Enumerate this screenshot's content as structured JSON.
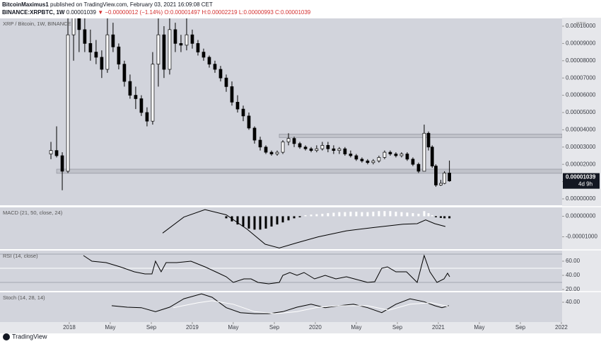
{
  "header": {
    "author": "BitcoinMaximus1",
    "published": "published on TradingView.com, February 03, 2021 16:09:08 CET",
    "symbol": "BINANCE:XRPBTC, 1W",
    "last": "0.00001039",
    "change": "▼ −0.00000012 (−1.14%)",
    "ohlc": "O:0.00001497 H:0.00002219 L:0.00000993 C:0.00001039"
  },
  "footer": {
    "brand": "TradingView"
  },
  "chart_data": [
    {
      "type": "candlestick",
      "title": "XRP / Bitcoin, 1W, BINANCE",
      "currency": "BTC",
      "up_color": "#ffffff",
      "down_color": "#000000",
      "x": [
        2017.851,
        2017.897,
        2017.943,
        2017.989,
        2018.035,
        2018.08,
        2018.126,
        2018.172,
        2018.218,
        2018.264,
        2018.31,
        2018.356,
        2018.402,
        2018.448,
        2018.494,
        2018.54,
        2018.586,
        2018.632,
        2018.678,
        2018.724,
        2018.77,
        2018.816,
        2018.862,
        2018.908,
        2018.954,
        2019.0,
        2019.046,
        2019.092,
        2019.138,
        2019.184,
        2019.23,
        2019.276,
        2019.322,
        2019.368,
        2019.414,
        2019.46,
        2019.506,
        2019.552,
        2019.598,
        2019.644,
        2019.69,
        2019.736,
        2019.782,
        2019.828,
        2019.874,
        2019.92,
        2019.966,
        2020.011,
        2020.057,
        2020.103,
        2020.149,
        2020.195,
        2020.241,
        2020.287,
        2020.333,
        2020.379,
        2020.425,
        2020.471,
        2020.517,
        2020.563,
        2020.609,
        2020.655,
        2020.701,
        2020.747,
        2020.793,
        2020.839,
        2020.885,
        2020.92,
        2020.95,
        2020.98,
        2021.02,
        2021.05,
        2021.09
      ],
      "open": [
        2.6e-05,
        2.8e-05,
        2.5e-05,
        1.6e-05,
        9.5e-05,
        0.000115,
        9.8e-05,
        9e-05,
        8.5e-05,
        8.2e-05,
        7.5e-05,
        9.5e-05,
        8.8e-05,
        7.8e-05,
        6.8e-05,
        6e-05,
        5.8e-05,
        5e-05,
        4.5e-05,
        7.8e-05,
        9.5e-05,
        7.5e-05,
        9.8e-05,
        9e-05,
        8.9e-05,
        9.5e-05,
        9e-05,
        8.5e-05,
        8.2e-05,
        7.8e-05,
        7.5e-05,
        7e-05,
        6.5e-05,
        5.6e-05,
        5.2e-05,
        4.8e-05,
        4.1e-05,
        3.4e-05,
        3e-05,
        2.7e-05,
        2.6e-05,
        2.7e-05,
        3.3e-05,
        3.5e-05,
        3.2e-05,
        3e-05,
        2.9e-05,
        2.8e-05,
        2.9e-05,
        3.1e-05,
        2.9e-05,
        2.8e-05,
        2.9e-05,
        2.6e-05,
        2.5e-05,
        2.3e-05,
        2.2e-05,
        2.1e-05,
        2.2e-05,
        2.4e-05,
        2.7e-05,
        2.6e-05,
        2.5e-05,
        2.6e-05,
        2.3e-05,
        2e-05,
        1.6e-05,
        3.8e-05,
        3e-05,
        1.9e-05,
        8e-06,
        9e-06,
        1.497e-05
      ],
      "high": [
        3.3e-05,
        4.2e-05,
        2.7e-05,
        0.000105,
        0.00014,
        0.00013,
        0.00011,
        9.8e-05,
        9.2e-05,
        8.6e-05,
        0.000105,
        0.000102,
        9e-05,
        8e-05,
        7.2e-05,
        6.5e-05,
        6e-05,
        5.3e-05,
        8.5e-05,
        0.000105,
        0.0001,
        0.000108,
        0.000102,
        9.5e-05,
        0.00011,
        9.8e-05,
        9.2e-05,
        8.7e-05,
        8.3e-05,
        8e-05,
        7.7e-05,
        7.2e-05,
        6.8e-05,
        6e-05,
        5.4e-05,
        5e-05,
        4.2e-05,
        3.6e-05,
        3.1e-05,
        2.8e-05,
        2.8e-05,
        3.4e-05,
        3.8e-05,
        3.6e-05,
        3.3e-05,
        3.1e-05,
        3e-05,
        3.1e-05,
        3.3e-05,
        3.3e-05,
        3.1e-05,
        3e-05,
        3e-05,
        2.8e-05,
        2.6e-05,
        2.4e-05,
        2.3e-05,
        2.3e-05,
        2.5e-05,
        2.8e-05,
        2.8e-05,
        2.7e-05,
        2.7e-05,
        2.7e-05,
        2.4e-05,
        2.1e-05,
        4.3e-05,
        3.9e-05,
        3.1e-05,
        2e-05,
        1.1e-05,
        1.6e-05,
        2.219e-05
      ],
      "low": [
        2.3e-05,
        2.4e-05,
        5e-06,
        1.5e-05,
        8e-05,
        8.5e-05,
        8.5e-05,
        8e-05,
        7.8e-05,
        7e-05,
        7.3e-05,
        8.5e-05,
        7.5e-05,
        6.5e-05,
        5.8e-05,
        5.2e-05,
        4.8e-05,
        4.2e-05,
        4.3e-05,
        6.5e-05,
        7e-05,
        7.2e-05,
        8.5e-05,
        8.5e-05,
        8.6e-05,
        8.7e-05,
        8.3e-05,
        8e-05,
        7.6e-05,
        7.3e-05,
        6.8e-05,
        6.2e-05,
        5.4e-05,
        5e-05,
        4.5e-05,
        4e-05,
        3.2e-05,
        2.8e-05,
        2.6e-05,
        2.5e-05,
        2.5e-05,
        2.6e-05,
        3.1e-05,
        3e-05,
        2.9e-05,
        2.8e-05,
        2.7e-05,
        2.7e-05,
        2.8e-05,
        2.7e-05,
        2.6e-05,
        2.6e-05,
        2.5e-05,
        2.4e-05,
        2.2e-05,
        2.1e-05,
        2e-05,
        2e-05,
        2.1e-05,
        2.3e-05,
        2.5e-05,
        2.4e-05,
        2.4e-05,
        2.2e-05,
        1.9e-05,
        1.5e-05,
        1.6e-05,
        2.8e-05,
        1.8e-05,
        7e-06,
        7.5e-06,
        8.5e-06,
        9.93e-06
      ],
      "close": [
        2.8e-05,
        2.5e-05,
        1.6e-05,
        9.5e-05,
        0.000115,
        9.8e-05,
        9e-05,
        8.5e-05,
        8.2e-05,
        7.5e-05,
        9.5e-05,
        8.8e-05,
        7.8e-05,
        6.8e-05,
        6e-05,
        5.8e-05,
        5e-05,
        4.5e-05,
        7.8e-05,
        9.5e-05,
        7.5e-05,
        9.8e-05,
        9e-05,
        8.9e-05,
        9.5e-05,
        9e-05,
        8.5e-05,
        8.2e-05,
        7.8e-05,
        7.5e-05,
        7e-05,
        6.5e-05,
        5.6e-05,
        5.2e-05,
        4.8e-05,
        4.1e-05,
        3.4e-05,
        3e-05,
        2.7e-05,
        2.6e-05,
        2.7e-05,
        3.3e-05,
        3.5e-05,
        3.2e-05,
        3e-05,
        2.9e-05,
        2.8e-05,
        2.9e-05,
        3.1e-05,
        2.9e-05,
        2.8e-05,
        2.9e-05,
        2.6e-05,
        2.5e-05,
        2.3e-05,
        2.2e-05,
        2.1e-05,
        2.2e-05,
        2.4e-05,
        2.7e-05,
        2.6e-05,
        2.5e-05,
        2.6e-05,
        2.3e-05,
        2e-05,
        1.6e-05,
        3.8e-05,
        3e-05,
        1.9e-05,
        8e-06,
        9e-06,
        1.497e-05,
        1.039e-05
      ],
      "zones": [
        {
          "low": 1.48e-05,
          "high": 1.72e-05,
          "start": 2017.897
        },
        {
          "low": 3.55e-05,
          "high": 3.75e-05,
          "start": 2019.707
        }
      ],
      "last_label": "0.00001039",
      "countdown": "4d 9h",
      "xlim": [
        2017.437,
        2022.006
      ],
      "xticks": [
        {
          "value": 2018,
          "label": "2018"
        },
        {
          "value": 2018.333,
          "label": "May"
        },
        {
          "value": 2018.667,
          "label": "Sep"
        },
        {
          "value": 2019,
          "label": "2019"
        },
        {
          "value": 2019.333,
          "label": "May"
        },
        {
          "value": 2019.667,
          "label": "Sep"
        },
        {
          "value": 2020,
          "label": "2020"
        },
        {
          "value": 2020.333,
          "label": "May"
        },
        {
          "value": 2020.667,
          "label": "Sep"
        },
        {
          "value": 2021,
          "label": "2021"
        },
        {
          "value": 2021.333,
          "label": "May"
        },
        {
          "value": 2021.667,
          "label": "Sep"
        },
        {
          "value": 2022,
          "label": "2022"
        }
      ],
      "ylim": [
        -3.7e-06,
        0.0001045
      ],
      "yticks": [
        {
          "value": 0,
          "label": "0.00000000"
        },
        {
          "value": 1e-05,
          "label": "0.00001000"
        },
        {
          "value": 2e-05,
          "label": "0.00002000"
        },
        {
          "value": 3e-05,
          "label": "0.00003000"
        },
        {
          "value": 4e-05,
          "label": "0.00004000"
        },
        {
          "value": 5e-05,
          "label": "0.00005000"
        },
        {
          "value": 6e-05,
          "label": "0.00006000"
        },
        {
          "value": 7e-05,
          "label": "0.00007000"
        },
        {
          "value": 8e-05,
          "label": "0.00008000"
        },
        {
          "value": 9e-05,
          "label": "0.00009000"
        },
        {
          "value": 0.0001,
          "label": "0.00010000"
        }
      ]
    },
    {
      "type": "macd",
      "title": "MACD (21, 50, close, 24)",
      "ylim": [
        -1.6e-05,
        4.3e-06
      ],
      "yticks": [
        {
          "value": 0,
          "label": "0.00000000"
        },
        {
          "value": -1e-05,
          "label": "-0.00001000"
        }
      ],
      "histogram": {
        "up_color": "#ffffff",
        "down_color": "#000000",
        "values": [
          null,
          null,
          null,
          null,
          null,
          null,
          null,
          null,
          null,
          null,
          null,
          null,
          null,
          null,
          null,
          null,
          null,
          null,
          null,
          null,
          null,
          null,
          null,
          null,
          null,
          null,
          null,
          null,
          null,
          null,
          null,
          -1e-06,
          -2.5e-06,
          -4e-06,
          -5e-06,
          -6e-06,
          -6.5e-06,
          -6.5e-06,
          -6e-06,
          -5e-06,
          -4e-06,
          -3e-06,
          -2e-06,
          -1e-06,
          -5e-07,
          5e-07,
          8e-07,
          1e-06,
          1.2e-06,
          1.5e-06,
          1.7e-06,
          2e-06,
          2e-06,
          2.2e-06,
          2.2e-06,
          2e-06,
          2e-06,
          2.2e-06,
          2.5e-06,
          2.5e-06,
          2.5e-06,
          2.2e-06,
          2e-06,
          1.8e-06,
          1.5e-06,
          1.2e-06,
          2.5e-06,
          1.5e-06,
          5e-07,
          -5e-07,
          -8e-07,
          -1e-06,
          -1e-06
        ]
      },
      "lines": [
        {
          "color": "#000000",
          "x": [
            2018.759,
            2018.931,
            2019.103,
            2019.276,
            2019.448,
            2019.592,
            2019.707,
            2019.851,
            2020.023,
            2020.253,
            2020.483,
            2020.713,
            2020.828,
            2020.897,
            2020.971,
            2021.057
          ],
          "values": [
            -8.2e-06,
            -4e-07,
            3.2e-06,
            7e-07,
            -6.4e-06,
            -1.36e-05,
            -1.54e-05,
            -1.29e-05,
            -1e-05,
            -7.1e-06,
            -5.4e-06,
            -3.9e-06,
            -3.6e-06,
            -1.8e-06,
            -3.6e-06,
            -5e-06
          ]
        }
      ]
    },
    {
      "type": "line",
      "title": "RSI (14, close)",
      "ylim": [
        18,
        75
      ],
      "yticks": [
        {
          "value": 60,
          "label": "60.00"
        },
        {
          "value": 40,
          "label": "40.00"
        },
        {
          "value": 20,
          "label": "20.00"
        }
      ],
      "levels": [
        {
          "value": 70,
          "color": "#a3a6af"
        },
        {
          "value": 50,
          "color": "#ffffff"
        },
        {
          "value": 30,
          "color": "#a3a6af"
        }
      ],
      "lines": [
        {
          "color": "#000000",
          "x": [
            2018.115,
            2018.184,
            2018.299,
            2018.414,
            2018.529,
            2018.615,
            2018.672,
            2018.701,
            2018.747,
            2018.787,
            2018.874,
            2018.989,
            2019.103,
            2019.19,
            2019.276,
            2019.333,
            2019.42,
            2019.477,
            2019.534,
            2019.621,
            2019.707,
            2019.736,
            2019.793,
            2019.851,
            2019.908,
            2019.994,
            2020.08,
            2020.167,
            2020.253,
            2020.339,
            2020.425,
            2020.483,
            2020.54,
            2020.586,
            2020.655,
            2020.741,
            2020.828,
            2020.885,
            2020.931,
            2020.989,
            2021.046,
            2021.075,
            2021.092
          ],
          "values": [
            68,
            60,
            58,
            52,
            45,
            42,
            42,
            60,
            45,
            58,
            58,
            60,
            52,
            45,
            38,
            30,
            35,
            35,
            30,
            28,
            30,
            40,
            44,
            40,
            44,
            35,
            40,
            35,
            38,
            34,
            30,
            31,
            50,
            52,
            45,
            45,
            30,
            68,
            45,
            30,
            35,
            43,
            38
          ]
        }
      ]
    },
    {
      "type": "line",
      "title": "Stoch (14, 28, 14)",
      "ylim": [
        0,
        60
      ],
      "yticks": [
        {
          "value": 40,
          "label": "40.00"
        }
      ],
      "levels": [],
      "lines": [
        {
          "color": "#000000",
          "x": [
            2018.345,
            2018.471,
            2018.586,
            2018.701,
            2018.816,
            2018.931,
            2019.075,
            2019.161,
            2019.276,
            2019.391,
            2019.506,
            2019.621,
            2019.736,
            2019.851,
            2019.966,
            2020.08,
            2020.195,
            2020.31,
            2020.425,
            2020.54,
            2020.655,
            2020.77,
            2020.885,
            2020.971,
            2021.029,
            2021.086
          ],
          "values": [
            33,
            30,
            29,
            21,
            30,
            47,
            57,
            50,
            29,
            19,
            17,
            17,
            21,
            30,
            36,
            29,
            33,
            36,
            29,
            19,
            36,
            47,
            41,
            33,
            29,
            33
          ]
        },
        {
          "color": "#ffffff",
          "x": [
            2018.845,
            2019.046,
            2019.161,
            2019.333,
            2019.506,
            2019.678,
            2019.851,
            2020.023,
            2020.195,
            2020.425,
            2020.598,
            2020.77,
            2020.943,
            2021.086
          ],
          "values": [
            29,
            39,
            43,
            36,
            21,
            17,
            21,
            30,
            33,
            33,
            24,
            36,
            39,
            31
          ]
        }
      ]
    }
  ]
}
